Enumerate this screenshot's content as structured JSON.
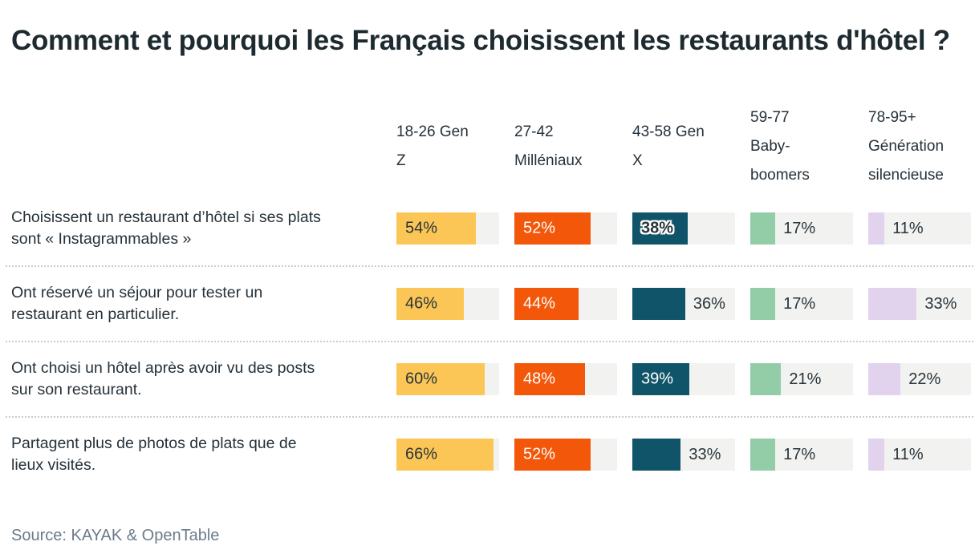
{
  "title": "Comment et pourquoi les Français choisissent les restaurants d'hôtel ?",
  "source": "Source: KAYAK & OpenTable",
  "colors": {
    "gen_z": "#fcc656",
    "millennials": "#f2570a",
    "gen_x": "#0f5468",
    "baby_boomers": "#92cda8",
    "silent_generation": "#e1d3ee",
    "bar_track": "#f2f2f0",
    "text_dark": "#25313a",
    "source_text": "#6c7b8b"
  },
  "chart_data": {
    "type": "bar",
    "xmax": 70,
    "grid": false,
    "legend_position": "top-column-headers",
    "columns": [
      {
        "label": "18-26 Gen\nZ",
        "name": "Gen Z",
        "color": "#fcc656"
      },
      {
        "label": "27-42\nMilléniaux",
        "name": "Milléniaux",
        "color": "#f2570a"
      },
      {
        "label": "43-58 Gen\nX",
        "name": "Gen X",
        "color": "#0f5468"
      },
      {
        "label": "59-77\nBaby-\nboomers",
        "name": "Baby-boomers",
        "color": "#92cda8"
      },
      {
        "label": "78-95+\nGénération\nsilencieuse",
        "name": "Génération silencieuse",
        "color": "#e1d3ee"
      }
    ],
    "rows": [
      {
        "label": "Choisissent un restaurant d’hôtel si ses plats\nsont « Instagrammables »",
        "values": [
          54,
          52,
          38,
          17,
          11
        ],
        "display": [
          "54%",
          "52%",
          "38%",
          "17%",
          "11%"
        ]
      },
      {
        "label": "Ont réservé un séjour pour tester un\nrestaurant en particulier.",
        "values": [
          46,
          44,
          36,
          17,
          33
        ],
        "display": [
          "46%",
          "44%",
          "36%",
          "17%",
          "33%"
        ]
      },
      {
        "label": "Ont choisi un hôtel après avoir vu des posts\nsur son restaurant.",
        "values": [
          60,
          48,
          39,
          21,
          22
        ],
        "display": [
          "60%",
          "48%",
          "39%",
          "21%",
          "22%"
        ]
      },
      {
        "label": "Partagent plus de photos de plats que de\nlieux visités.",
        "values": [
          66,
          52,
          33,
          17,
          11
        ],
        "display": [
          "66%",
          "52%",
          "33%",
          "17%",
          "11%"
        ]
      }
    ]
  }
}
